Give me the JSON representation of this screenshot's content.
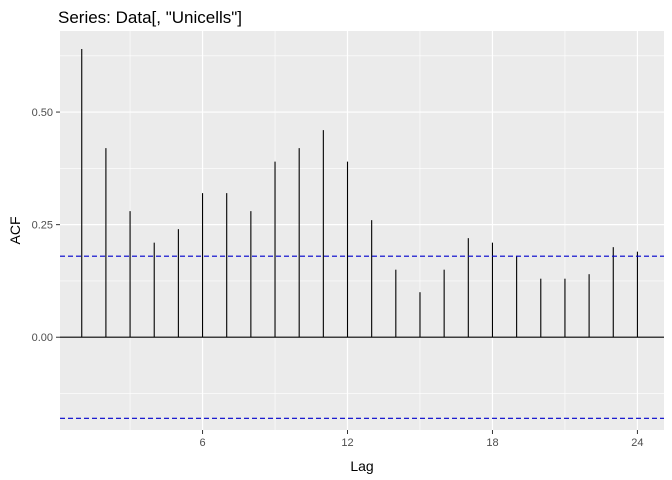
{
  "chart_data": {
    "type": "bar",
    "subtype": "acf-lollipop",
    "title": "Series: Data[, \"Unicells\"]",
    "xlabel": "Lag",
    "ylabel": "ACF",
    "x": [
      1,
      2,
      3,
      4,
      5,
      6,
      7,
      8,
      9,
      10,
      11,
      12,
      13,
      14,
      15,
      16,
      17,
      18,
      19,
      20,
      21,
      22,
      23,
      24
    ],
    "values": [
      0.64,
      0.42,
      0.28,
      0.21,
      0.24,
      0.32,
      0.32,
      0.28,
      0.39,
      0.42,
      0.46,
      0.39,
      0.26,
      0.15,
      0.1,
      0.15,
      0.22,
      0.21,
      0.18,
      0.13,
      0.13,
      0.14,
      0.2,
      0.19
    ],
    "xlim": [
      0.1,
      25.1
    ],
    "ylim": [
      -0.206,
      0.68
    ],
    "xticks": [
      6,
      12,
      18,
      24
    ],
    "xtick_labels": [
      "6",
      "12",
      "18",
      "24"
    ],
    "yticks": [
      0.0,
      0.25,
      0.5
    ],
    "ytick_labels": [
      "0.00",
      "0.25",
      "0.50"
    ],
    "confidence_bounds": [
      0.18,
      -0.18
    ],
    "grid": true,
    "colors": {
      "panel": "#ebebeb",
      "grid": "#ffffff",
      "bar": "#000000",
      "bound": "#0000cc"
    }
  }
}
